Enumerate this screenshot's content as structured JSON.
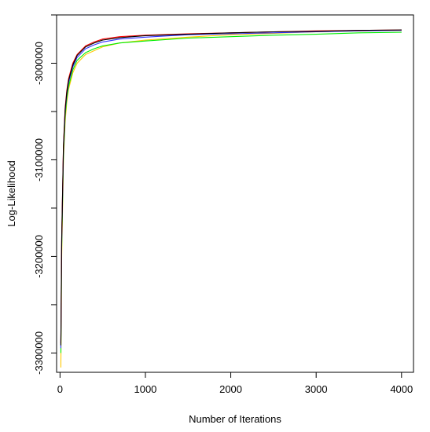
{
  "chart_data": {
    "type": "line",
    "title": "",
    "xlabel": "Number of Iterations",
    "ylabel": "Log-Likelihood",
    "xlim": [
      -40,
      4140
    ],
    "ylim": [
      -3320000,
      -2950000
    ],
    "x_ticks": [
      0,
      1000,
      2000,
      3000,
      4000
    ],
    "x_tick_labels": [
      "0",
      "1000",
      "2000",
      "3000",
      "4000"
    ],
    "y_ticks": [
      -3300000,
      -3250000,
      -3200000,
      -3150000,
      -3100000,
      -3050000,
      -3000000,
      -2950000
    ],
    "y_tick_labels": [
      "-3300000",
      "",
      "-3200000",
      "",
      "-3100000",
      "",
      "-3000000",
      ""
    ],
    "grid": false,
    "legend": "none",
    "series": [
      {
        "color": "#ffc800",
        "points": [
          [
            10,
            -3315000
          ],
          [
            20,
            -3200000
          ],
          [
            40,
            -3100000
          ],
          [
            60,
            -3060000
          ],
          [
            80,
            -3040000
          ],
          [
            100,
            -3027000
          ],
          [
            150,
            -3010000
          ],
          [
            200,
            -3000000
          ],
          [
            300,
            -2991000
          ],
          [
            400,
            -2987000
          ],
          [
            500,
            -2983000
          ],
          [
            700,
            -2979000
          ],
          [
            1000,
            -2976000
          ],
          [
            1500,
            -2973000
          ],
          [
            2000,
            -2970500
          ],
          [
            2500,
            -2969000
          ],
          [
            3000,
            -2967500
          ],
          [
            3500,
            -2966500
          ],
          [
            4000,
            -2966000
          ]
        ]
      },
      {
        "color": "#00ee00",
        "points": [
          [
            10,
            -3300000
          ],
          [
            20,
            -3190000
          ],
          [
            40,
            -3095000
          ],
          [
            60,
            -3055000
          ],
          [
            80,
            -3036000
          ],
          [
            100,
            -3024000
          ],
          [
            150,
            -3007000
          ],
          [
            200,
            -2997000
          ],
          [
            300,
            -2989000
          ],
          [
            400,
            -2985000
          ],
          [
            500,
            -2982000
          ],
          [
            700,
            -2979000
          ],
          [
            1000,
            -2977000
          ],
          [
            1500,
            -2974000
          ],
          [
            2000,
            -2972500
          ],
          [
            2500,
            -2971000
          ],
          [
            3000,
            -2970000
          ],
          [
            3500,
            -2968500
          ],
          [
            4000,
            -2968000
          ]
        ]
      },
      {
        "color": "#3333ff",
        "points": [
          [
            10,
            -3295000
          ],
          [
            20,
            -3185000
          ],
          [
            40,
            -3090000
          ],
          [
            60,
            -3050000
          ],
          [
            80,
            -3032000
          ],
          [
            100,
            -3020000
          ],
          [
            150,
            -3004000
          ],
          [
            200,
            -2994000
          ],
          [
            300,
            -2985000
          ],
          [
            400,
            -2981000
          ],
          [
            500,
            -2978000
          ],
          [
            700,
            -2975000
          ],
          [
            1000,
            -2973000
          ],
          [
            1500,
            -2970500
          ],
          [
            2000,
            -2969500
          ],
          [
            2500,
            -2968500
          ],
          [
            3000,
            -2967500
          ],
          [
            3500,
            -2966500
          ],
          [
            4000,
            -2966000
          ]
        ]
      },
      {
        "color": "#ff0000",
        "points": [
          [
            10,
            -3290000
          ],
          [
            20,
            -3180000
          ],
          [
            40,
            -3085000
          ],
          [
            60,
            -3046000
          ],
          [
            80,
            -3028000
          ],
          [
            100,
            -3016000
          ],
          [
            150,
            -3000000
          ],
          [
            200,
            -2991000
          ],
          [
            300,
            -2982000
          ],
          [
            400,
            -2978000
          ],
          [
            500,
            -2975000
          ],
          [
            700,
            -2972500
          ],
          [
            1000,
            -2971000
          ],
          [
            1500,
            -2969500
          ],
          [
            2000,
            -2968500
          ],
          [
            2500,
            -2967500
          ],
          [
            3000,
            -2966500
          ],
          [
            3500,
            -2966000
          ],
          [
            4000,
            -2965500
          ]
        ]
      },
      {
        "color": "#000000",
        "points": [
          [
            10,
            -3292000
          ],
          [
            20,
            -3182000
          ],
          [
            40,
            -3087000
          ],
          [
            60,
            -3048000
          ],
          [
            80,
            -3030000
          ],
          [
            100,
            -3018000
          ],
          [
            150,
            -3002000
          ],
          [
            200,
            -2992000
          ],
          [
            300,
            -2983000
          ],
          [
            400,
            -2979000
          ],
          [
            500,
            -2976000
          ],
          [
            700,
            -2973500
          ],
          [
            1000,
            -2971500
          ],
          [
            1500,
            -2970000
          ],
          [
            2000,
            -2968500
          ],
          [
            2500,
            -2967500
          ],
          [
            3000,
            -2967000
          ],
          [
            3500,
            -2966000
          ],
          [
            4000,
            -2965500
          ]
        ]
      }
    ]
  }
}
